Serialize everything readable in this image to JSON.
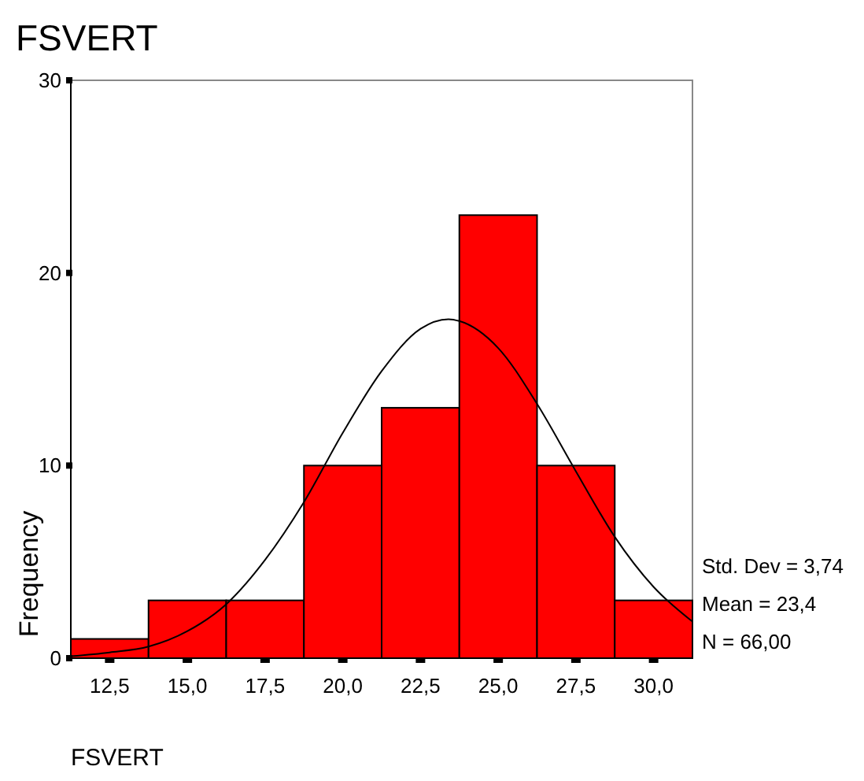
{
  "chart_data": {
    "type": "histogram",
    "title": "FSVERT",
    "xlabel": "FSVERT",
    "ylabel": "Frequency",
    "bins": [
      11.25,
      13.75,
      16.25,
      18.75,
      21.25,
      23.75,
      26.25,
      28.75,
      31.25
    ],
    "values": [
      1,
      3,
      3,
      10,
      13,
      23,
      10,
      3
    ],
    "color": "#ff0000",
    "series": [
      {
        "type": "line",
        "color": "#000000",
        "x": [
          11.25,
          12.5,
          13.75,
          15,
          16.25,
          17.5,
          18.75,
          20,
          21.25,
          22.5,
          23.4,
          23.75,
          25,
          26.25,
          27.5,
          28.75,
          30,
          31.25
        ],
        "values": [
          0.1,
          0.3,
          0.6,
          1.4,
          2.8,
          5.1,
          8.1,
          11.7,
          14.9,
          17.1,
          17.6,
          17.5,
          16.1,
          13.2,
          9.7,
          6.3,
          3.7,
          1.9
        ]
      }
    ],
    "xlim": [
      11.25,
      31.25
    ],
    "xticks": [
      {
        "value": 12.5,
        "label": "12,5"
      },
      {
        "value": 15,
        "label": "15,0"
      },
      {
        "value": 17.5,
        "label": "17,5"
      },
      {
        "value": 20,
        "label": "20,0"
      },
      {
        "value": 22.5,
        "label": "22,5"
      },
      {
        "value": 25,
        "label": "25,0"
      },
      {
        "value": 27.5,
        "label": "27,5"
      },
      {
        "value": 30,
        "label": "30,0"
      }
    ],
    "ylim": [
      0,
      30
    ],
    "yticks": [
      0,
      10,
      20,
      30
    ],
    "annotations": [
      "Std. Dev = 3,74",
      "Mean = 23,4",
      "N = 66,00"
    ]
  }
}
